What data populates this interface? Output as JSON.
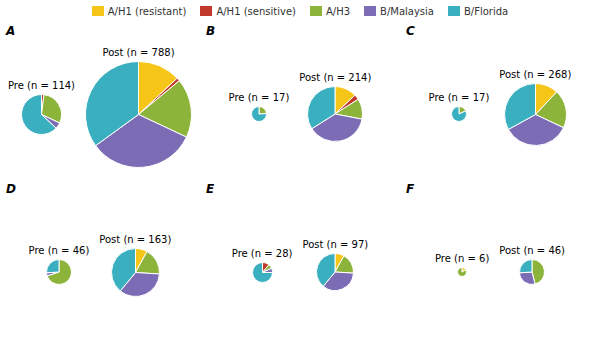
{
  "chart_data": [
    {
      "type": "pie",
      "title": "A",
      "legend": "top",
      "categories": [
        "A/H1 (resistant)",
        "A/H1 (sensitive)",
        "A/H3",
        "B/Malaysia",
        "B/Florida"
      ],
      "colors": [
        "#f5c518",
        "#c0392b",
        "#8db43a",
        "#7b6cb5",
        "#3aafc0"
      ],
      "series": [
        {
          "name": "Pre (n = 114)",
          "n": 114,
          "values": [
            0,
            2,
            30,
            5,
            63
          ]
        },
        {
          "name": "Post (n = 788)",
          "n": 788,
          "values": [
            13,
            1,
            18,
            33,
            35
          ]
        }
      ]
    },
    {
      "type": "pie",
      "title": "B",
      "categories": [
        "A/H1 (resistant)",
        "A/H1 (sensitive)",
        "A/H3",
        "B/Malaysia",
        "B/Florida"
      ],
      "colors": [
        "#f5c518",
        "#c0392b",
        "#8db43a",
        "#7b6cb5",
        "#3aafc0"
      ],
      "series": [
        {
          "name": "Pre (n = 17)",
          "n": 17,
          "values": [
            0,
            0,
            24,
            0,
            76
          ]
        },
        {
          "name": "Post (n = 214)",
          "n": 214,
          "values": [
            13,
            3,
            12,
            38,
            34
          ]
        }
      ]
    },
    {
      "type": "pie",
      "title": "C",
      "categories": [
        "A/H1 (resistant)",
        "A/H1 (sensitive)",
        "A/H3",
        "B/Malaysia",
        "B/Florida"
      ],
      "colors": [
        "#f5c518",
        "#c0392b",
        "#8db43a",
        "#7b6cb5",
        "#3aafc0"
      ],
      "series": [
        {
          "name": "Pre (n = 17)",
          "n": 17,
          "values": [
            0,
            0,
            18,
            0,
            82
          ]
        },
        {
          "name": "Post (n = 268)",
          "n": 268,
          "values": [
            12,
            0,
            20,
            35,
            33
          ]
        }
      ]
    },
    {
      "type": "pie",
      "title": "D",
      "categories": [
        "A/H1 (resistant)",
        "A/H1 (sensitive)",
        "A/H3",
        "B/Malaysia",
        "B/Florida"
      ],
      "colors": [
        "#f5c518",
        "#c0392b",
        "#8db43a",
        "#7b6cb5",
        "#3aafc0"
      ],
      "series": [
        {
          "name": "Pre (n = 46)",
          "n": 46,
          "values": [
            0,
            0,
            70,
            4,
            26
          ]
        },
        {
          "name": "Post (n = 163)",
          "n": 163,
          "values": [
            8,
            0,
            18,
            35,
            39
          ]
        }
      ]
    },
    {
      "type": "pie",
      "title": "E",
      "categories": [
        "A/H1 (resistant)",
        "A/H1 (sensitive)",
        "A/H3",
        "B/Malaysia",
        "B/Florida"
      ],
      "colors": [
        "#f5c518",
        "#c0392b",
        "#8db43a",
        "#7b6cb5",
        "#3aafc0"
      ],
      "series": [
        {
          "name": "Pre (n = 28)",
          "n": 28,
          "values": [
            0,
            11,
            7,
            7,
            75
          ]
        },
        {
          "name": "Post (n = 97)",
          "n": 97,
          "values": [
            8,
            0,
            18,
            35,
            39
          ]
        }
      ]
    },
    {
      "type": "pie",
      "title": "F",
      "categories": [
        "A/H1 (resistant)",
        "A/H1 (sensitive)",
        "A/H3",
        "B/Malaysia",
        "B/Florida"
      ],
      "colors": [
        "#f5c518",
        "#c0392b",
        "#8db43a",
        "#7b6cb5",
        "#3aafc0"
      ],
      "series": [
        {
          "name": "Pre (n = 6)",
          "n": 6,
          "values": [
            17,
            0,
            83,
            0,
            0
          ]
        },
        {
          "name": "Post (n = 46)",
          "n": 46,
          "values": [
            0,
            0,
            46,
            28,
            26
          ]
        }
      ]
    }
  ]
}
